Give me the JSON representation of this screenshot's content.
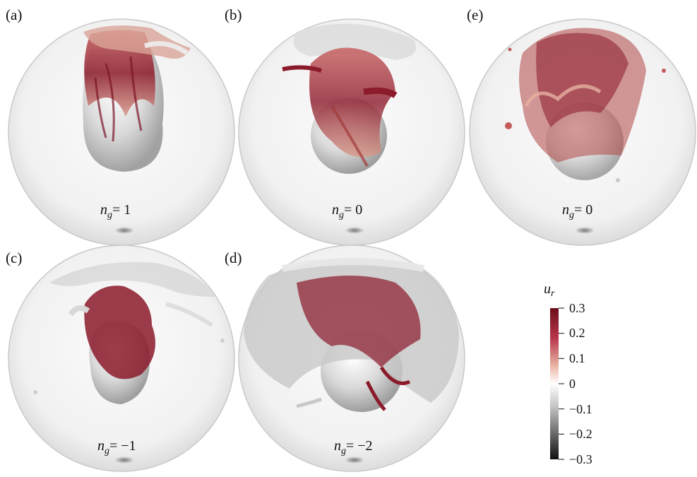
{
  "panels": [
    {
      "id": "a",
      "label": "(a)",
      "ng_prefix": "n",
      "ng_sub": "g",
      "ng_value": "= 1"
    },
    {
      "id": "b",
      "label": "(b)",
      "ng_prefix": "n",
      "ng_sub": "g",
      "ng_value": "= 0"
    },
    {
      "id": "e",
      "label": "(e)",
      "ng_prefix": "n",
      "ng_sub": "g",
      "ng_value": "= 0"
    },
    {
      "id": "c",
      "label": "(c)",
      "ng_prefix": "n",
      "ng_sub": "g",
      "ng_value": "= −1"
    },
    {
      "id": "d",
      "label": "(d)",
      "ng_prefix": "n",
      "ng_sub": "g",
      "ng_value": "= −2"
    }
  ],
  "colorbar": {
    "title_main": "u",
    "title_sub": "r",
    "ticks": [
      "0.3",
      "0.2",
      "0.1",
      "0",
      "−0.1",
      "−0.2",
      "−0.3"
    ],
    "range": [
      -0.3,
      0.3
    ],
    "colors": {
      "max": "#6b0d1a",
      "mid": "#ffffff",
      "min": "#111111"
    }
  },
  "colors": {
    "plume_dark": "#8b1a2b",
    "plume_mid": "#c45a5a",
    "plume_light": "#e8b3a0",
    "gray_structure": "#c8c8c8",
    "sphere_edge": "#c9c9c9"
  }
}
